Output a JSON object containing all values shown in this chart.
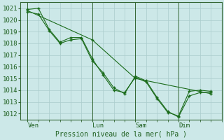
{
  "xlabel": "Pression niveau de la mer( hPa )",
  "bg_color": "#cce8e8",
  "grid_color": "#aacccc",
  "line_color": "#1a6b1a",
  "ylim": [
    1011.5,
    1021.5
  ],
  "yticks": [
    1012,
    1013,
    1014,
    1015,
    1016,
    1017,
    1018,
    1019,
    1020,
    1021
  ],
  "xtick_labels": [
    "Ven",
    "Lun",
    "Sam",
    "Dim"
  ],
  "xtick_positions": [
    0,
    36,
    60,
    84
  ],
  "vline_positions": [
    0,
    36,
    60,
    84
  ],
  "xlim": [
    -4,
    108
  ],
  "series1_x": [
    0,
    6,
    12,
    18,
    24,
    30,
    36,
    42,
    48,
    54,
    60,
    66,
    72,
    78,
    84,
    90,
    96,
    102
  ],
  "series1_y": [
    1020.7,
    1020.5,
    1019.1,
    1018.0,
    1018.3,
    1018.4,
    1016.5,
    1015.5,
    1014.2,
    1013.7,
    1015.2,
    1014.8,
    1013.4,
    1012.2,
    1011.7,
    1013.5,
    1013.8,
    1013.8
  ],
  "series2_x": [
    0,
    6,
    12,
    18,
    24,
    30,
    36,
    42,
    48,
    54,
    60,
    66,
    72,
    78,
    84,
    90,
    96,
    102
  ],
  "series2_y": [
    1020.9,
    1021.0,
    1019.2,
    1018.1,
    1018.5,
    1018.5,
    1016.7,
    1015.3,
    1014.0,
    1013.8,
    1015.1,
    1014.7,
    1013.3,
    1012.1,
    1011.8,
    1013.9,
    1014.0,
    1013.9
  ],
  "series3_x": [
    0,
    36,
    60,
    102
  ],
  "series3_y": [
    1020.8,
    1018.3,
    1015.0,
    1013.7
  ]
}
